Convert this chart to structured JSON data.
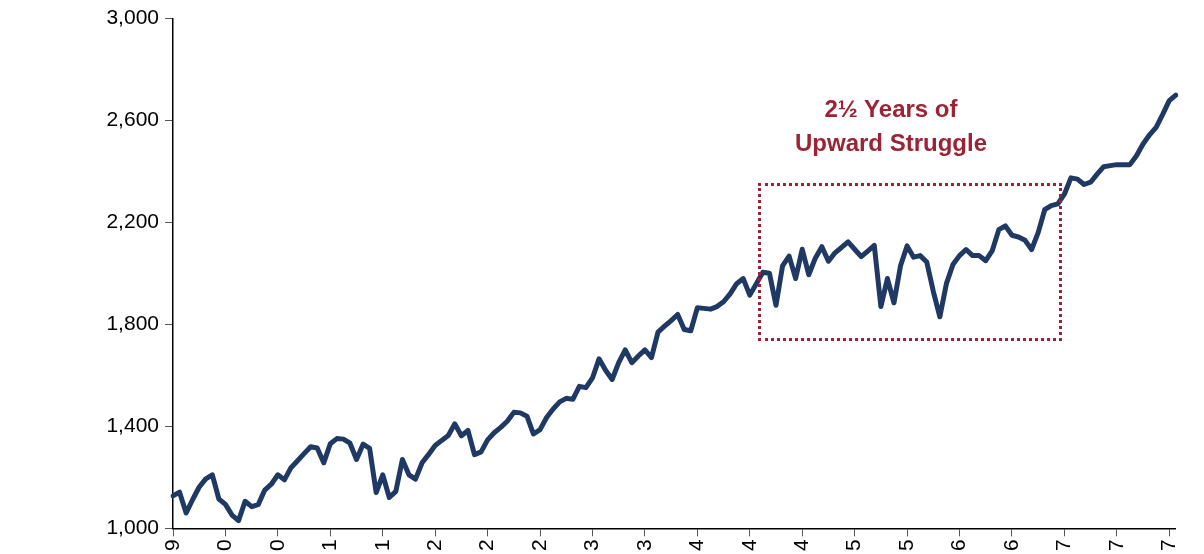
{
  "chart_data": {
    "type": "line",
    "categories": [
      "9",
      null,
      null,
      null,
      null,
      null,
      null,
      null,
      "0",
      null,
      null,
      null,
      null,
      null,
      null,
      null,
      "0",
      null,
      null,
      null,
      null,
      null,
      null,
      null,
      "1",
      null,
      null,
      null,
      null,
      null,
      null,
      null,
      "1",
      null,
      null,
      null,
      null,
      null,
      null,
      null,
      "2",
      null,
      null,
      null,
      null,
      null,
      null,
      null,
      "2",
      null,
      null,
      null,
      null,
      null,
      null,
      null,
      "2",
      null,
      null,
      null,
      null,
      null,
      null,
      null,
      "3",
      null,
      null,
      null,
      null,
      null,
      null,
      null,
      "3",
      null,
      null,
      null,
      null,
      null,
      null,
      null,
      "4",
      null,
      null,
      null,
      null,
      null,
      null,
      null,
      "4",
      null,
      null,
      null,
      null,
      null,
      null,
      null,
      "4",
      null,
      null,
      null,
      null,
      null,
      null,
      null,
      "5",
      null,
      null,
      null,
      null,
      null,
      null,
      null,
      "5",
      null,
      null,
      null,
      null,
      null,
      null,
      null,
      "6",
      null,
      null,
      null,
      null,
      null,
      null,
      null,
      "6",
      null,
      null,
      null,
      null,
      null,
      null,
      null,
      "7",
      null,
      null,
      null,
      null,
      null,
      null,
      null,
      "7",
      null,
      null,
      null,
      null,
      null,
      null,
      null,
      "7",
      null
    ],
    "ylim": [
      1000,
      3000
    ],
    "yticks": [
      {
        "value": 1000,
        "label": "1,000"
      },
      {
        "value": 1400,
        "label": "1,400"
      },
      {
        "value": 1800,
        "label": "1,800"
      },
      {
        "value": 2200,
        "label": "2,200"
      },
      {
        "value": 2600,
        "label": "2,600"
      },
      {
        "value": 3000,
        "label": "3,000"
      }
    ],
    "grid": false,
    "legend": false,
    "marker": "none",
    "line_style": "solid",
    "annotations": [
      "2½ Years of\nUpward Struggle"
    ],
    "series": [
      {
        "color": "#1f3864",
        "values": [
          1127,
          1142,
          1060,
          1113,
          1162,
          1194,
          1210,
          1115,
          1094,
          1052,
          1030,
          1106,
          1085,
          1093,
          1150,
          1173,
          1210,
          1190,
          1238,
          1265,
          1293,
          1320,
          1315,
          1257,
          1332,
          1352,
          1350,
          1334,
          1270,
          1330,
          1314,
          1140,
          1210,
          1121,
          1145,
          1270,
          1210,
          1193,
          1257,
          1290,
          1325,
          1345,
          1364,
          1410,
          1363,
          1384,
          1289,
          1300,
          1347,
          1375,
          1396,
          1420,
          1455,
          1453,
          1440,
          1370,
          1387,
          1435,
          1468,
          1496,
          1510,
          1506,
          1557,
          1552,
          1590,
          1665,
          1620,
          1584,
          1650,
          1700,
          1650,
          1676,
          1700,
          1670,
          1770,
          1793,
          1815,
          1839,
          1780,
          1775,
          1865,
          1863,
          1860,
          1870,
          1889,
          1920,
          1960,
          1980,
          1915,
          1960,
          2005,
          2001,
          1875,
          2030,
          2068,
          1980,
          2095,
          1995,
          2060,
          2105,
          2048,
          2081,
          2102,
          2124,
          2095,
          2066,
          2088,
          2110,
          1870,
          1980,
          1885,
          2030,
          2108,
          2064,
          2070,
          2045,
          1930,
          1830,
          1960,
          2035,
          2070,
          2094,
          2070,
          2070,
          2050,
          2090,
          2172,
          2187,
          2150,
          2143,
          2130,
          2094,
          2160,
          2250,
          2266,
          2273,
          2311,
          2375,
          2370,
          2349,
          2358,
          2390,
          2419,
          2423,
          2427,
          2427,
          2427,
          2462,
          2508,
          2544,
          2573,
          2624,
          2678,
          2700
        ]
      }
    ]
  }
}
